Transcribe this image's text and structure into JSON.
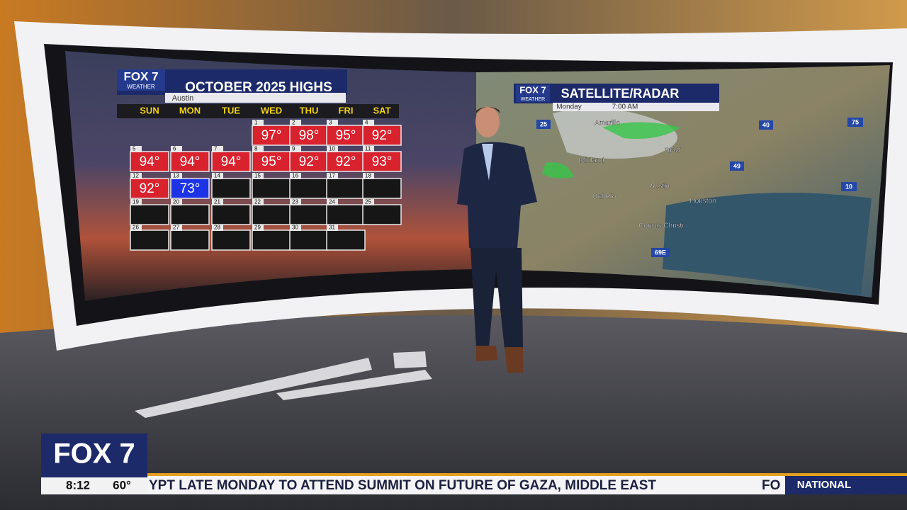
{
  "calendar": {
    "logo": "FOX 7",
    "logo_sub": "WEATHER",
    "title": "OCTOBER 2025 HIGHS",
    "location": "Austin",
    "days": [
      "SUN",
      "MON",
      "TUE",
      "WED",
      "THU",
      "FRI",
      "SAT"
    ],
    "weeks": [
      [
        null,
        null,
        null,
        {
          "day": 1,
          "temp": "97°",
          "color": "#d8222e"
        },
        {
          "day": 2,
          "temp": "98°",
          "color": "#d8222e"
        },
        {
          "day": 3,
          "temp": "95°",
          "color": "#d8222e"
        },
        {
          "day": 4,
          "temp": "92°",
          "color": "#d8222e"
        }
      ],
      [
        {
          "day": 5,
          "temp": "94°",
          "color": "#d8222e"
        },
        {
          "day": 6,
          "temp": "94°",
          "color": "#d8222e"
        },
        {
          "day": 7,
          "temp": "94°",
          "color": "#d8222e"
        },
        {
          "day": 8,
          "temp": "95°",
          "color": "#d8222e"
        },
        {
          "day": 9,
          "temp": "92°",
          "color": "#d8222e"
        },
        {
          "day": 10,
          "temp": "92°",
          "color": "#d8222e"
        },
        {
          "day": 11,
          "temp": "93°",
          "color": "#d8222e"
        }
      ],
      [
        {
          "day": 12,
          "temp": "92°",
          "color": "#d8222e"
        },
        {
          "day": 13,
          "temp": "73°",
          "color": "#1c34e6"
        },
        {
          "day": 14
        },
        {
          "day": 15
        },
        {
          "day": 16
        },
        {
          "day": 17
        },
        {
          "day": 18
        }
      ],
      [
        {
          "day": 19
        },
        {
          "day": 20
        },
        {
          "day": 21
        },
        {
          "day": 22
        },
        {
          "day": 23
        },
        {
          "day": 24
        },
        {
          "day": 25
        }
      ],
      [
        {
          "day": 26
        },
        {
          "day": 27
        },
        {
          "day": 28
        },
        {
          "day": 29
        },
        {
          "day": 30
        },
        {
          "day": 31
        },
        null
      ]
    ]
  },
  "radar": {
    "logo": "FOX 7",
    "logo_sub": "WEATHER",
    "title": "SATELLITE/RADAR",
    "day": "Monday",
    "time": "7:00 AM",
    "cities": [
      "Amarillo",
      "DFW",
      "Midland",
      "Austin",
      "Del Rio",
      "Houston",
      "Corpus Christi"
    ],
    "highways": [
      "25",
      "40",
      "75",
      "49",
      "10",
      "69E"
    ]
  },
  "lower_third": {
    "logo": "FOX 7",
    "time": "8:12",
    "temperature": "60°",
    "ticker": "YPT LATE MONDAY TO ATTEND SUMMIT ON FUTURE OF GAZA, MIDDLE EAST",
    "ticker_logo": "FO",
    "section": "NATIONAL"
  }
}
